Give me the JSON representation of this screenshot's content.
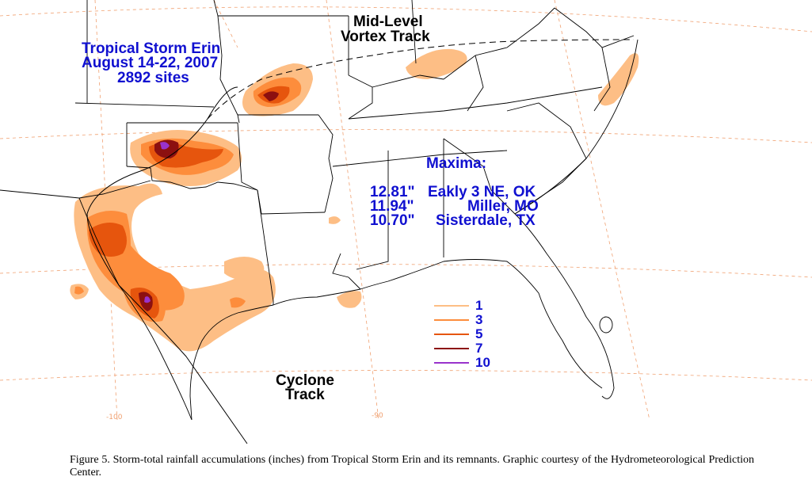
{
  "title": {
    "line1": "Tropical Storm Erin",
    "line2": "August 14-22, 2007",
    "line3": "2892 sites"
  },
  "labels": {
    "vortex_line1": "Mid-Level",
    "vortex_line2": "Vortex Track",
    "cyclone_line1": "Cyclone",
    "cyclone_line2": "Track"
  },
  "maxima": {
    "heading": "Maxima:",
    "rows": [
      {
        "amount": "12.81\"",
        "site": "Eakly 3 NE, OK"
      },
      {
        "amount": "11.94\"",
        "site": "Miller, MO"
      },
      {
        "amount": "10.70\"",
        "site": "Sisterdale, TX"
      }
    ]
  },
  "legend": [
    {
      "value": "1",
      "color": "#fdbe85"
    },
    {
      "value": "3",
      "color": "#fd8d3c"
    },
    {
      "value": "5",
      "color": "#e6550d"
    },
    {
      "value": "7",
      "color": "#8c1010"
    },
    {
      "value": "10",
      "color": "#9933cc"
    }
  ],
  "longitude_labels": [
    "-100",
    "-90"
  ],
  "caption": "Figure 5.   Storm-total rainfall accumulations (inches) from Tropical Storm Erin and its remnants.   Graphic courtesy of the Hydrometeorological Prediction Center.",
  "colors": {
    "label_blue": "#1010d0",
    "gridline": "#f0a070",
    "boundary": "#000000"
  }
}
